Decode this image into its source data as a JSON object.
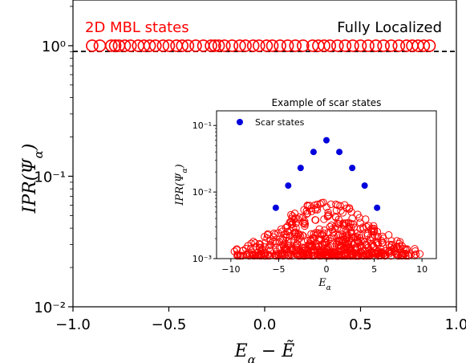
{
  "chart_data": [
    {
      "type": "scatter",
      "xlabel": "E_α − Ẽ",
      "ylabel": "IPR(Ψ_α)",
      "xlim": [
        -1.0,
        1.0
      ],
      "ylim_log10": [
        -2,
        0.35
      ],
      "yscale": "log",
      "x_ticks": [
        "−1.0",
        "−0.5",
        "0.0",
        "0.5",
        "1.0"
      ],
      "y_ticks": [
        "10⁰",
        "10⁻¹",
        "10⁻²"
      ],
      "annotations": {
        "left": "2D MBL states",
        "right": "Fully Localized"
      },
      "reference_line": {
        "y": 1.0,
        "style": "dashed",
        "color": "#000000"
      },
      "series": [
        {
          "name": "2D MBL states",
          "marker": "open-circle",
          "color": "#ff0000",
          "points": [
            [
              -0.9,
              1
            ],
            [
              -0.86,
              1
            ],
            [
              -0.8,
              1
            ],
            [
              -0.78,
              1
            ],
            [
              -0.76,
              1
            ],
            [
              -0.73,
              1
            ],
            [
              -0.7,
              1
            ],
            [
              -0.66,
              1
            ],
            [
              -0.63,
              1
            ],
            [
              -0.6,
              1
            ],
            [
              -0.57,
              1
            ],
            [
              -0.53,
              1
            ],
            [
              -0.5,
              1
            ],
            [
              -0.46,
              1
            ],
            [
              -0.43,
              1
            ],
            [
              -0.4,
              1
            ],
            [
              -0.36,
              1
            ],
            [
              -0.32,
              1
            ],
            [
              -0.28,
              1
            ],
            [
              -0.26,
              1
            ],
            [
              -0.24,
              1
            ],
            [
              -0.21,
              1
            ],
            [
              -0.17,
              1
            ],
            [
              -0.13,
              1
            ],
            [
              -0.1,
              1
            ],
            [
              -0.06,
              1
            ],
            [
              -0.03,
              1
            ],
            [
              0.01,
              1
            ],
            [
              0.04,
              1
            ],
            [
              0.08,
              1
            ],
            [
              0.12,
              1
            ],
            [
              0.16,
              1
            ],
            [
              0.2,
              1
            ],
            [
              0.25,
              1
            ],
            [
              0.28,
              1
            ],
            [
              0.31,
              1
            ],
            [
              0.34,
              1
            ],
            [
              0.38,
              1
            ],
            [
              0.42,
              1
            ],
            [
              0.46,
              1
            ],
            [
              0.5,
              1
            ],
            [
              0.54,
              1
            ],
            [
              0.58,
              1
            ],
            [
              0.62,
              1
            ],
            [
              0.66,
              1
            ],
            [
              0.7,
              1
            ],
            [
              0.74,
              1
            ],
            [
              0.77,
              1
            ],
            [
              0.8,
              1
            ],
            [
              0.83,
              1
            ],
            [
              0.86,
              1
            ]
          ]
        }
      ]
    },
    {
      "type": "scatter",
      "title": "Example of scar states",
      "xlabel": "E_α",
      "ylabel": "IPR(Ψ_α)",
      "xlim": [
        -11.5,
        11.5
      ],
      "ylim_log10": [
        -3,
        -0.78
      ],
      "yscale": "log",
      "x_ticks": [
        "−10",
        "−5",
        "0",
        "5",
        "10"
      ],
      "y_ticks": [
        "10⁻¹",
        "10⁻²",
        "10⁻³"
      ],
      "legend": {
        "position": "top-left",
        "entries": [
          "Scar states"
        ]
      },
      "series": [
        {
          "name": "Scar states",
          "marker": "filled-circle",
          "color": "#0000dd",
          "points": [
            [
              -5.3,
              0.0058
            ],
            [
              -4.0,
              0.0125
            ],
            [
              -2.7,
              0.023
            ],
            [
              -1.35,
              0.04
            ],
            [
              0.0,
              0.06
            ],
            [
              1.35,
              0.04
            ],
            [
              2.7,
              0.023
            ],
            [
              4.0,
              0.0125
            ],
            [
              5.3,
              0.0058
            ]
          ]
        },
        {
          "name": "",
          "marker": "open-circle",
          "color": "#ff0000",
          "cloud": {
            "x_range": [
              -10,
              10
            ],
            "ipr_floor": 0.0011,
            "ipr_peak_center": 0.008,
            "count": 620
          }
        }
      ]
    }
  ]
}
